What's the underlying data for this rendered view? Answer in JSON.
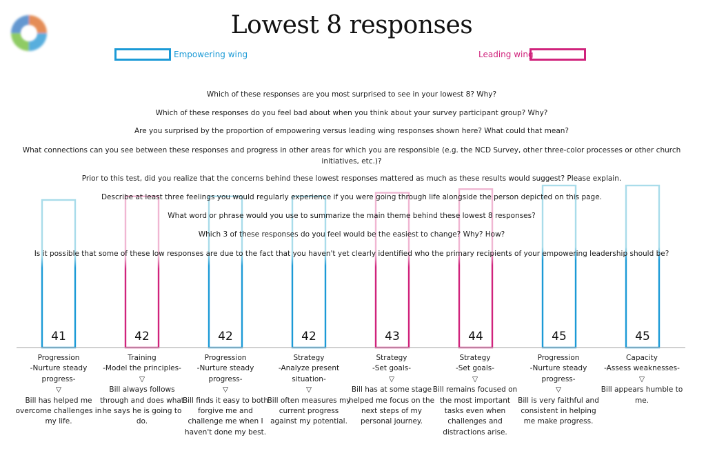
{
  "title": "Lowest 8 responses",
  "legend": {
    "empowering": "Empowering wing",
    "leading": "Leading wing"
  },
  "colors": {
    "empowering": "#1b9ad6",
    "empowering_light": "#a9dcea",
    "leading": "#d0237c",
    "leading_light": "#f0b6d2"
  },
  "logo_icon": "swirl-logo-icon",
  "questions": [
    "Which of these responses are you most surprised to see in your lowest 8? Why?",
    "Which of these responses do you feel bad about when you think about your survey participant group? Why?",
    "Are you surprised by the proportion of empowering versus leading wing responses shown here? What could that mean?",
    "What connections can you see between these responses and progress in other areas for which you are responsible (e.g. the NCD Survey, other three-color processes or other church initiatives, etc.)?",
    "Prior to this test, did you realize that the concerns behind these lowest responses mattered as much as these results would suggest? Please explain.",
    "Describe at least three feelings you would regularly experience if you were going through life alongside the person depicted on this page.",
    "What word or phrase would you use to summarize the main theme behind these lowest 8 responses?",
    "Which 3 of these responses do you feel would be the easiest to change? Why? How?",
    "Is it possible that some of these low responses are due to the fact that you haven't yet clearly identified who the primary recipients of your empowering leadership should be?"
  ],
  "chart_data": {
    "type": "bar",
    "title": "Lowest 8 responses",
    "ylim": [
      0,
      50
    ],
    "grid": false,
    "legend_position": "top",
    "series": [
      {
        "name": "Empowering wing",
        "color": "#1b9ad6"
      },
      {
        "name": "Leading wing",
        "color": "#d0237c"
      }
    ],
    "bars": [
      {
        "value": 41,
        "wing": "empowering",
        "category": "Progression",
        "theme": "-Nurture steady progress-",
        "arrow": "▽",
        "statement": "Bill has helped me overcome challenges in my life."
      },
      {
        "value": 42,
        "wing": "leading",
        "category": "Training",
        "theme": "-Model the principles-",
        "arrow": "▽",
        "statement": "Bill always follows through and does what he says he is going to do."
      },
      {
        "value": 42,
        "wing": "empowering",
        "category": "Progression",
        "theme": "-Nurture steady progress-",
        "arrow": "▽",
        "statement": "Bill finds it easy to both forgive me and challenge me when I haven't done my best."
      },
      {
        "value": 42,
        "wing": "empowering",
        "category": "Strategy",
        "theme": "-Analyze present situation-",
        "arrow": "▽",
        "statement": "Bill often measures my current progress against my potential."
      },
      {
        "value": 43,
        "wing": "leading",
        "category": "Strategy",
        "theme": "-Set goals-",
        "arrow": "▽",
        "statement": "Bill has at some stage helped me focus on the next steps of my personal journey."
      },
      {
        "value": 44,
        "wing": "leading",
        "category": "Strategy",
        "theme": "-Set goals-",
        "arrow": "▽",
        "statement": "Bill remains focused on the most important tasks even when challenges and distractions arise."
      },
      {
        "value": 45,
        "wing": "empowering",
        "category": "Progression",
        "theme": "-Nurture steady progress-",
        "arrow": "▽",
        "statement": "Bill is very faithful and consistent in helping me make progress."
      },
      {
        "value": 45,
        "wing": "empowering",
        "category": "Capacity",
        "theme": "-Assess weaknesses-",
        "arrow": "▽",
        "statement": "Bill appears humble to me."
      }
    ]
  }
}
